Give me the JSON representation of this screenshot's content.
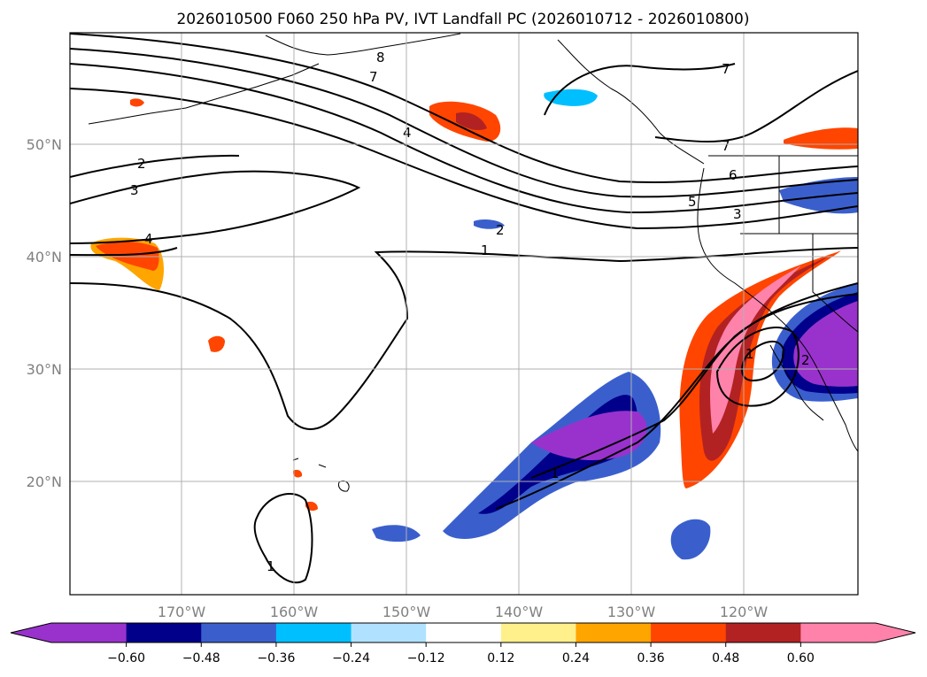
{
  "title": "2026010500 F060 250 hPa PV, IVT Landfall PC (2026010712 - 2026010800)",
  "map": {
    "lon_labels": [
      "170°W",
      "160°W",
      "150°W",
      "140°W",
      "130°W",
      "120°W"
    ],
    "lat_labels": [
      "50°N",
      "40°N",
      "30°N",
      "20°N"
    ],
    "contour_labels": [
      "7",
      "8",
      "4",
      "2",
      "3",
      "4",
      "1",
      "2",
      "7",
      "7",
      "6",
      "5",
      "3",
      "1",
      "1",
      "2",
      "1"
    ]
  },
  "colorbar": {
    "tick_labels": [
      "−0.60",
      "−0.48",
      "−0.36",
      "−0.24",
      "−0.12",
      "0.12",
      "0.24",
      "0.36",
      "0.48",
      "0.60"
    ],
    "colors": [
      "#9932cc",
      "#00008b",
      "#3a5fcd",
      "#00bfff",
      "#b0e2ff",
      "#ffffff",
      "#fff08c",
      "#ffa500",
      "#ff4500",
      "#b22222",
      "#ff82ab"
    ]
  }
}
